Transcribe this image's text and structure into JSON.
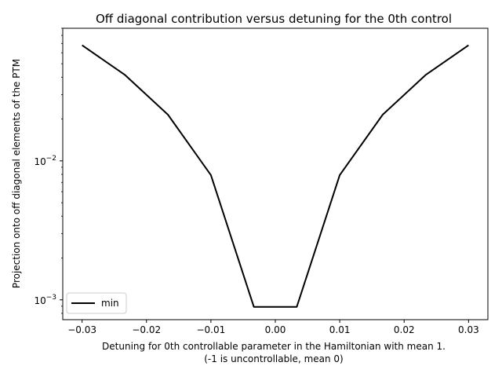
{
  "chart_data": {
    "type": "line",
    "title": "Off diagonal contribution versus detuning for the 0th control",
    "xlabel_lines": [
      "Detuning for 0th controllable parameter in the Hamiltonian with mean 1.",
      "(-1 is uncontrollable, mean 0)"
    ],
    "ylabel": "Projection onto off diagonal elements of the PTM",
    "yscale": "log",
    "xlim": [
      -0.033,
      0.033
    ],
    "ylim": [
      0.00072,
      0.09
    ],
    "xticks": [
      -0.03,
      -0.02,
      -0.01,
      0.0,
      0.01,
      0.02,
      0.03
    ],
    "xtick_labels": [
      "−0.03",
      "−0.02",
      "−0.01",
      "0.00",
      "0.01",
      "0.02",
      "0.03"
    ],
    "yticks_major": [
      0.001,
      0.01
    ],
    "ytick_labels": [
      {
        "base": "10",
        "exp": "−3"
      },
      {
        "base": "10",
        "exp": "−2"
      }
    ],
    "grid": false,
    "legend_position": "lower-left",
    "series": [
      {
        "name": "min",
        "color": "#000000",
        "x": [
          -0.03,
          -0.02333,
          -0.01667,
          -0.01,
          -0.00333,
          0.00333,
          0.01,
          0.01667,
          0.02333,
          0.03
        ],
        "y": [
          0.068,
          0.0415,
          0.0215,
          0.0079,
          0.00089,
          0.00089,
          0.0079,
          0.0215,
          0.0415,
          0.068
        ]
      }
    ]
  }
}
